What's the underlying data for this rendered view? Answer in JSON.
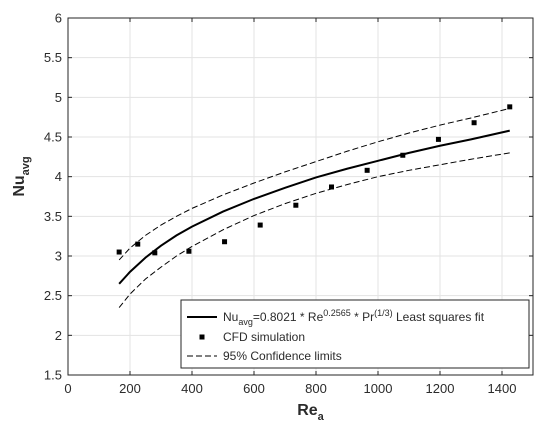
{
  "chart_data": {
    "type": "scatter",
    "title": "",
    "xlabel": "Re",
    "xlabel_sub": "a",
    "ylabel": "Nu",
    "ylabel_sub": "avg",
    "xlim": [
      0,
      1500
    ],
    "ylim": [
      1.5,
      6
    ],
    "xticks": [
      0,
      200,
      400,
      600,
      800,
      1000,
      1200,
      1400
    ],
    "yticks": [
      1.5,
      2,
      2.5,
      3,
      3.5,
      4,
      4.5,
      5,
      5.5,
      6
    ],
    "grid": true,
    "legend_position": "bottom-right",
    "series": [
      {
        "name": "CFD simulation",
        "kind": "markers",
        "marker": "square",
        "color": "#000000",
        "x": [
          165,
          225,
          280,
          390,
          505,
          620,
          735,
          850,
          965,
          1080,
          1195,
          1310,
          1425
        ],
        "y": [
          3.05,
          3.15,
          3.04,
          3.06,
          3.18,
          3.39,
          3.64,
          3.87,
          4.08,
          4.27,
          4.47,
          4.68,
          4.88
        ]
      },
      {
        "name": "Least squares fit",
        "kind": "line",
        "style": "solid",
        "color": "#000000",
        "x": [
          165,
          200,
          250,
          300,
          350,
          400,
          500,
          600,
          700,
          800,
          900,
          1000,
          1100,
          1200,
          1300,
          1425
        ],
        "y": [
          2.65,
          2.8,
          2.98,
          3.13,
          3.26,
          3.37,
          3.56,
          3.72,
          3.86,
          3.99,
          4.1,
          4.2,
          4.3,
          4.39,
          4.47,
          4.58
        ]
      },
      {
        "name": "95% Confidence limits",
        "kind": "line",
        "style": "dashed",
        "color": "#000000",
        "x": [
          165,
          200,
          250,
          300,
          350,
          400,
          500,
          600,
          700,
          800,
          900,
          1000,
          1100,
          1200,
          1300,
          1425
        ],
        "y": [
          2.95,
          3.1,
          3.26,
          3.39,
          3.5,
          3.6,
          3.77,
          3.92,
          4.06,
          4.19,
          4.32,
          4.44,
          4.55,
          4.65,
          4.74,
          4.86
        ]
      },
      {
        "name": "95% Confidence limits (lower)",
        "kind": "line",
        "style": "dashed",
        "color": "#000000",
        "x": [
          165,
          200,
          250,
          300,
          350,
          400,
          500,
          600,
          700,
          800,
          900,
          1000,
          1100,
          1200,
          1300,
          1425
        ],
        "y": [
          2.35,
          2.52,
          2.71,
          2.86,
          3.0,
          3.12,
          3.33,
          3.51,
          3.66,
          3.79,
          3.9,
          4.0,
          4.08,
          4.15,
          4.22,
          4.3
        ]
      }
    ],
    "legend": {
      "fit_prefix": "Nu",
      "fit_prefix_sub": "avg",
      "fit_eq_1": "=0.8021 * Re",
      "fit_exp_1": "0.2565",
      "fit_eq_2": " * Pr",
      "fit_exp_2": "(1/3)",
      "fit_suffix": " Least squares fit",
      "cfd": "CFD simulation",
      "conf": "95% Confidence limits"
    }
  }
}
